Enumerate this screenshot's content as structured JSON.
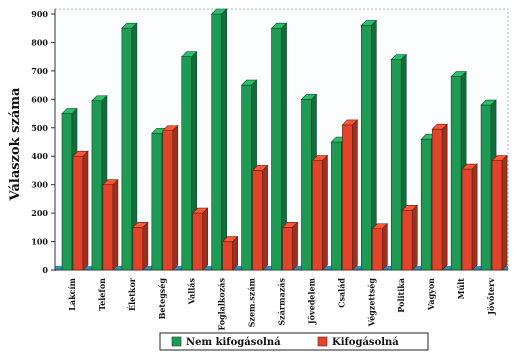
{
  "chart_data": {
    "type": "bar",
    "ylabel": "Válaszok száma",
    "xlabel": "",
    "title": "",
    "ylim": [
      0,
      900
    ],
    "yticks": [
      0,
      100,
      200,
      300,
      400,
      500,
      600,
      700,
      800,
      900
    ],
    "grid": false,
    "legend_position": "bottom",
    "categories": [
      "Lakcím",
      "Telefon",
      "Életkor",
      "Betegség",
      "Vallás",
      "Foglalkozás",
      "Szem.szám",
      "Származás",
      "Jövedelem",
      "Család",
      "Végzettség",
      "Politika",
      "Vagyon",
      "Múlt",
      "Jövőterv"
    ],
    "series": [
      {
        "name": "Nem kifogásolná",
        "color": "#1e9a55",
        "values": [
          550,
          595,
          850,
          480,
          750,
          900,
          650,
          850,
          600,
          450,
          860,
          740,
          460,
          680,
          580
        ]
      },
      {
        "name": "Kifogásolná",
        "color": "#e0452b",
        "values": [
          400,
          300,
          150,
          490,
          200,
          100,
          350,
          150,
          385,
          510,
          145,
          210,
          495,
          355,
          385
        ]
      }
    ]
  }
}
